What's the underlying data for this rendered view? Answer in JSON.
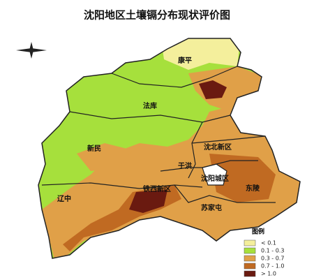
{
  "title": "沈阳地区土壤镉分布现状评价图",
  "districts": [
    {
      "label": "康平"
    },
    {
      "label": "法库"
    },
    {
      "label": "新民"
    },
    {
      "label": "沈北新区"
    },
    {
      "label": "于洪"
    },
    {
      "label": "沈阳城区"
    },
    {
      "label": "东陵"
    },
    {
      "label": "辽中"
    },
    {
      "label": "铁西新区"
    },
    {
      "label": "苏家屯"
    }
  ],
  "legend": {
    "title": "图例",
    "items": [
      {
        "label": "< 0.1",
        "color": "#f4ef9c"
      },
      {
        "label": "0.1 - 0.3",
        "color": "#a6e03c"
      },
      {
        "label": "0.3 - 0.7",
        "color": "#e0a048"
      },
      {
        "label": "0.7 - 1.0",
        "color": "#c06a22"
      },
      {
        "label": "> 1.0",
        "color": "#6a1a10"
      }
    ]
  }
}
